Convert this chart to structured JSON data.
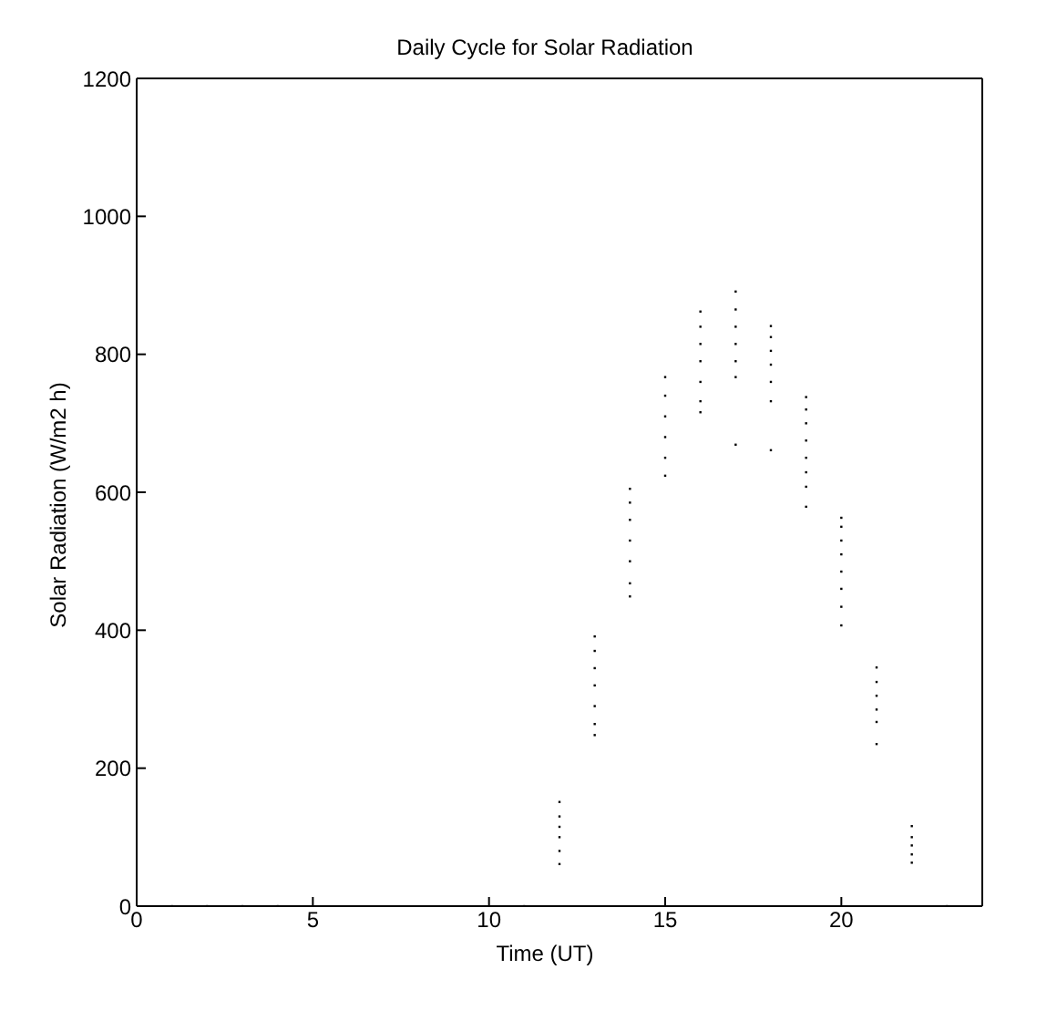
{
  "chart_data": {
    "type": "scatter",
    "title": "Daily Cycle for Solar Radiation",
    "xlabel": "Time (UT)",
    "ylabel": "Solar Radiation (W/m2 h)",
    "xlim": [
      0,
      24
    ],
    "xticks": [
      0,
      5,
      10,
      15,
      20
    ],
    "ylim": [
      0,
      1200
    ],
    "yticks": [
      0,
      200,
      400,
      600,
      800,
      1000,
      1200
    ],
    "marker": "square",
    "series": [
      {
        "color": "#000000",
        "x": [
          1,
          2,
          3,
          4,
          11,
          23,
          12,
          12,
          12,
          12,
          12,
          12,
          13,
          13,
          13,
          13,
          13,
          13,
          13,
          14,
          14,
          14,
          14,
          14,
          14,
          14,
          15,
          15,
          15,
          15,
          15,
          15,
          16,
          16,
          16,
          16,
          16,
          16,
          16,
          17,
          17,
          17,
          17,
          17,
          17,
          17,
          18,
          18,
          18,
          18,
          18,
          18,
          18,
          19,
          19,
          19,
          19,
          19,
          19,
          19,
          19,
          20,
          20,
          20,
          20,
          20,
          20,
          20,
          20,
          21,
          21,
          21,
          21,
          21,
          21,
          22,
          22,
          22,
          22,
          22
        ],
        "values": [
          0,
          0,
          0,
          0,
          0,
          0,
          61,
          80,
          100,
          115,
          130,
          151,
          248,
          264,
          290,
          320,
          345,
          370,
          391,
          449,
          468,
          500,
          530,
          560,
          585,
          605,
          624,
          650,
          680,
          710,
          740,
          767,
          716,
          732,
          760,
          790,
          815,
          840,
          862,
          669,
          767,
          790,
          815,
          840,
          865,
          891,
          661,
          732,
          760,
          785,
          805,
          825,
          841,
          579,
          608,
          629,
          650,
          675,
          700,
          720,
          738,
          407,
          434,
          460,
          485,
          510,
          530,
          550,
          563,
          235,
          267,
          285,
          305,
          325,
          346,
          63,
          75,
          88,
          100,
          116
        ]
      }
    ]
  }
}
